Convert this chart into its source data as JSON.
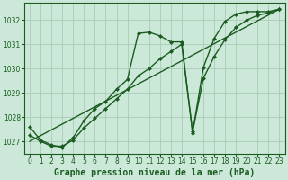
{
  "xlabel": "Graphe pression niveau de la mer (hPa)",
  "bg_color": "#cce8d8",
  "grid_color": "#aaccb8",
  "line_color": "#1a5c20",
  "ylim": [
    1026.5,
    1032.7
  ],
  "xlim": [
    -0.5,
    23.5
  ],
  "yticks": [
    1027,
    1028,
    1029,
    1030,
    1031,
    1032
  ],
  "xticks": [
    0,
    1,
    2,
    3,
    4,
    5,
    6,
    7,
    8,
    9,
    10,
    11,
    12,
    13,
    14,
    15,
    16,
    17,
    18,
    19,
    20,
    21,
    22,
    23
  ],
  "series1_x": [
    0,
    1,
    2,
    3,
    4,
    5,
    6,
    7,
    8,
    9,
    10,
    11,
    12,
    13,
    14,
    15,
    16,
    17,
    18,
    19,
    20,
    21,
    22,
    23
  ],
  "series1_y": [
    1027.6,
    1027.05,
    1026.85,
    1026.75,
    1027.15,
    1027.85,
    1028.35,
    1028.65,
    1029.15,
    1029.55,
    1031.45,
    1031.5,
    1031.35,
    1031.1,
    1031.1,
    1027.35,
    1030.05,
    1031.25,
    1031.95,
    1032.25,
    1032.35,
    1032.35,
    1032.35,
    1032.45
  ],
  "series2_x": [
    0,
    1,
    2,
    3,
    4,
    5,
    6,
    7,
    8,
    9,
    10,
    11,
    12,
    13,
    14,
    15,
    16,
    17,
    18,
    19,
    20,
    21,
    22,
    23
  ],
  "series2_y": [
    1027.25,
    1027.0,
    1026.8,
    1026.8,
    1027.05,
    1027.55,
    1027.95,
    1028.35,
    1028.75,
    1029.15,
    1029.7,
    1030.0,
    1030.4,
    1030.7,
    1031.0,
    1027.4,
    1029.6,
    1030.5,
    1031.2,
    1031.7,
    1032.0,
    1032.2,
    1032.3,
    1032.45
  ],
  "series3_x": [
    0,
    23
  ],
  "series3_y": [
    1027.0,
    1032.45
  ],
  "marker": "D",
  "markersize": 2.5,
  "linewidth": 1.0,
  "xlabel_fontsize": 7,
  "tick_fontsize": 5.5
}
